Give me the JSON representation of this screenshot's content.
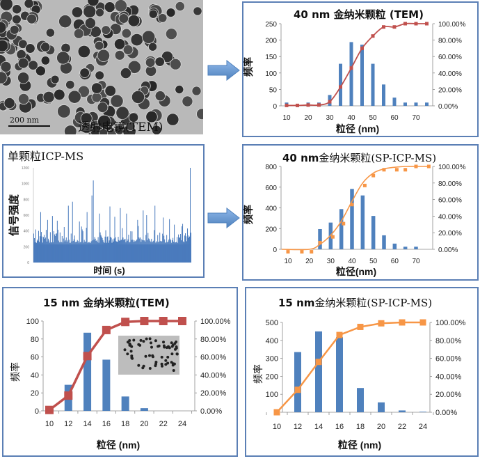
{
  "tem_image": {
    "caption": "透射电镜(TEM)",
    "scale_bar": "200 nm"
  },
  "icp_panel": {
    "title": "单颗粒ICP-MS",
    "ylabel": "信号强度",
    "xlabel": "时间 (s)",
    "yticks": [
      "0",
      "200",
      "400",
      "600",
      "800",
      "1000",
      "1200"
    ],
    "ymax": 1200
  },
  "colors": {
    "bar": "#4f81bd",
    "red_line": "#c0504d",
    "orange_line": "#f79646",
    "panel_border": "#5b7fb5",
    "arrow": "#6f9fd8"
  },
  "icons": {
    "arrow1": "right-arrow-icon",
    "arrow2": "right-arrow-icon"
  },
  "chart_data": [
    {
      "id": "tem40",
      "type": "bar+line",
      "title": "40 nm 金纳米颗粒 (TEM)",
      "xlabel": "粒径 (nm)",
      "ylabel": "频率",
      "xticks": [
        "10",
        "20",
        "30",
        "40",
        "50",
        "60",
        "70"
      ],
      "yticks": [
        "0",
        "50",
        "100",
        "150",
        "200",
        "250"
      ],
      "y2ticks": [
        "0.00%",
        "20.00%",
        "40.00%",
        "60.00%",
        "80.00%",
        "100.00%"
      ],
      "ylim": [
        0,
        250
      ],
      "y2lim": [
        0,
        100
      ],
      "xlim": [
        7,
        78
      ],
      "series": [
        {
          "name": "频率",
          "kind": "bar",
          "x": [
            10,
            20,
            25,
            30,
            35,
            40,
            45,
            50,
            55,
            60,
            65,
            70,
            75
          ],
          "values": [
            10,
            10,
            10,
            33,
            128,
            194,
            186,
            128,
            65,
            25,
            10,
            10,
            10
          ]
        },
        {
          "name": "累积 %",
          "kind": "line-markers",
          "x": [
            10,
            15,
            20,
            25,
            30,
            35,
            40,
            45,
            50,
            55,
            60,
            65,
            70,
            75
          ],
          "values": [
            0.5,
            0.5,
            1,
            1,
            5,
            23,
            46,
            70,
            85,
            96,
            96,
            100,
            100,
            100
          ]
        }
      ]
    },
    {
      "id": "sp40",
      "type": "bar+line",
      "title_bold": "40 nm",
      "title_rest": "金纳米颗粒(SP-ICP-MS)",
      "xlabel": "粒径(nm)",
      "ylabel": "频率",
      "xticks": [
        "10",
        "20",
        "30",
        "40",
        "50",
        "60",
        "70"
      ],
      "yticks": [
        "0",
        "200",
        "400",
        "600",
        "800"
      ],
      "y2ticks": [
        "0.00%",
        "20.00%",
        "40.00%",
        "60.00%",
        "80.00%",
        "100.00%"
      ],
      "ylim": [
        0,
        800
      ],
      "y2lim": [
        0,
        100
      ],
      "xlim": [
        7,
        78
      ],
      "series": [
        {
          "name": "频率",
          "kind": "bar",
          "x": [
            25,
            30,
            35,
            40,
            45,
            50,
            55,
            60,
            65,
            70
          ],
          "values": [
            195,
            258,
            388,
            583,
            520,
            322,
            135,
            55,
            25,
            25
          ]
        },
        {
          "name": "累积 %",
          "kind": "markers",
          "x": [
            10,
            16.5,
            21,
            25,
            31,
            36,
            40,
            46,
            50,
            55,
            61,
            65,
            70,
            76
          ],
          "values": [
            -3,
            -3,
            -3,
            8,
            15,
            31,
            54,
            77,
            89,
            96,
            96,
            96,
            100,
            100
          ]
        },
        {
          "name": "拟合",
          "kind": "curve",
          "x": [
            7,
            20,
            25,
            30,
            35,
            40,
            45,
            50,
            55,
            60,
            65,
            70,
            76
          ],
          "values": [
            0,
            0,
            6,
            17,
            34,
            58,
            80,
            92,
            97,
            99,
            100,
            100,
            100
          ]
        }
      ]
    },
    {
      "id": "tem15",
      "type": "bar+line",
      "title": "15 nm 金纳米颗粒(TEM)",
      "xlabel": "粒径 (nm)",
      "ylabel": "频率",
      "xticks": [
        "10",
        "12",
        "14",
        "16",
        "18",
        "20",
        "22",
        "24"
      ],
      "yticks": [
        "0",
        "20",
        "40",
        "60",
        "80",
        "100"
      ],
      "y2ticks": [
        "0.00%",
        "20.00%",
        "40.00%",
        "60.00%",
        "80.00%",
        "100.00%"
      ],
      "ylim": [
        0,
        100
      ],
      "y2lim": [
        0,
        100
      ],
      "series": [
        {
          "name": "频率",
          "kind": "bar",
          "x": [
            10,
            12,
            14,
            16,
            18,
            20,
            22,
            24
          ],
          "values": [
            0,
            29,
            87,
            57,
            16,
            3,
            0,
            0
          ]
        },
        {
          "name": "累积 %",
          "kind": "line-markers",
          "x": [
            10,
            12,
            14,
            16,
            18,
            20,
            22,
            24
          ],
          "values": [
            1,
            17,
            61,
            90,
            99,
            100,
            100,
            100
          ]
        }
      ]
    },
    {
      "id": "sp15",
      "type": "bar+line",
      "title_bold": "15 nm",
      "title_rest": "金纳米颗粒(SP-ICP-MS)",
      "xlabel": "粒径 (nm)",
      "ylabel": "频率",
      "xticks": [
        "10",
        "12",
        "14",
        "16",
        "18",
        "20",
        "22",
        "24"
      ],
      "yticks": [
        "0",
        "100",
        "200",
        "300",
        "400",
        "500"
      ],
      "y2ticks": [
        "0.00%",
        "20.00%",
        "40.00%",
        "60.00%",
        "80.00%",
        "100.00%"
      ],
      "ylim": [
        0,
        500
      ],
      "y2lim": [
        0,
        100
      ],
      "series": [
        {
          "name": "频率",
          "kind": "bar",
          "x": [
            10,
            12,
            14,
            16,
            18,
            20,
            22,
            24
          ],
          "values": [
            0,
            335,
            450,
            418,
            135,
            55,
            10,
            3
          ]
        },
        {
          "name": "累积 %",
          "kind": "line-markers",
          "x": [
            10,
            12,
            14,
            16,
            18,
            20,
            22,
            24
          ],
          "values": [
            0,
            25,
            56,
            86,
            95,
            99,
            100,
            100
          ]
        }
      ]
    }
  ]
}
